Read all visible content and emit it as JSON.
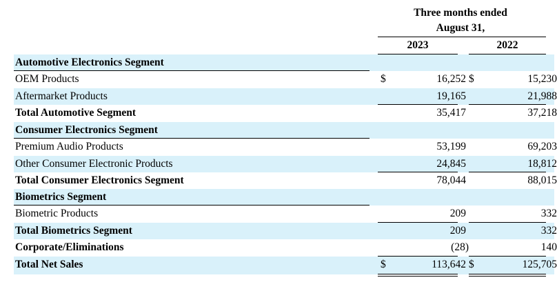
{
  "header": {
    "period_line1": "Three months ended",
    "period_line2": "August 31,",
    "year_current": "2023",
    "year_prior": "2022"
  },
  "currency_symbol": "$",
  "rows": [
    {
      "label": "Automotive Electronics Segment",
      "v2023": "",
      "v2022": "",
      "bold": true
    },
    {
      "label": "OEM Products",
      "v2023": "16,252",
      "v2022": "15,230",
      "bold": false
    },
    {
      "label": "Aftermarket Products",
      "v2023": "19,165",
      "v2022": "21,988",
      "bold": false
    },
    {
      "label": "Total Automotive Segment",
      "v2023": "35,417",
      "v2022": "37,218",
      "bold": true
    },
    {
      "label": "Consumer Electronics Segment",
      "v2023": "",
      "v2022": "",
      "bold": true
    },
    {
      "label": "Premium Audio Products",
      "v2023": "53,199",
      "v2022": "69,203",
      "bold": false
    },
    {
      "label": "Other Consumer Electronic Products",
      "v2023": "24,845",
      "v2022": "18,812",
      "bold": false
    },
    {
      "label": "Total Consumer Electronics Segment",
      "v2023": "78,044",
      "v2022": "88,015",
      "bold": true
    },
    {
      "label": "Biometrics Segment",
      "v2023": "",
      "v2022": "",
      "bold": true
    },
    {
      "label": "Biometric Products",
      "v2023": "209",
      "v2022": "332",
      "bold": false
    },
    {
      "label": "Total Biometrics Segment",
      "v2023": "209",
      "v2022": "332",
      "bold": true
    },
    {
      "label": "Corporate/Eliminations",
      "v2023": "(28)",
      "v2022": "140",
      "bold": true
    },
    {
      "label": "Total Net Sales",
      "v2023": "113,642",
      "v2022": "125,705",
      "bold": true
    }
  ]
}
